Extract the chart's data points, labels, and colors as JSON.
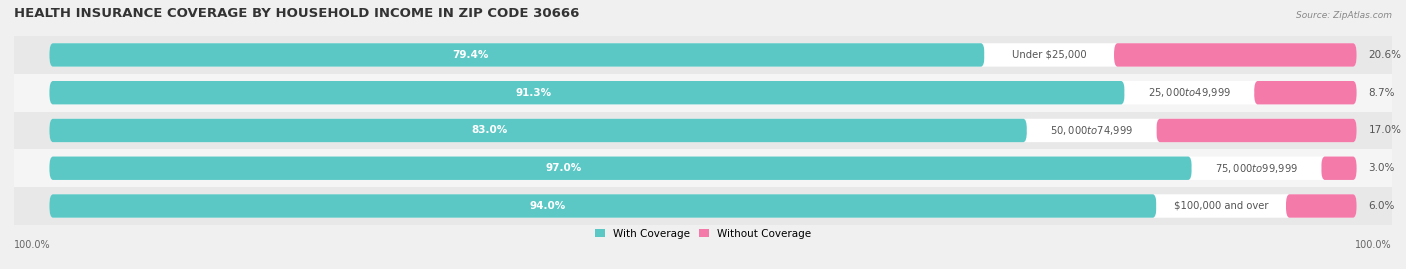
{
  "title": "HEALTH INSURANCE COVERAGE BY HOUSEHOLD INCOME IN ZIP CODE 30666",
  "source": "Source: ZipAtlas.com",
  "categories": [
    "Under $25,000",
    "$25,000 to $49,999",
    "$50,000 to $74,999",
    "$75,000 to $99,999",
    "$100,000 and over"
  ],
  "with_coverage": [
    79.4,
    91.3,
    83.0,
    97.0,
    94.0
  ],
  "without_coverage": [
    20.6,
    8.7,
    17.0,
    3.0,
    6.0
  ],
  "color_with": "#5bc8c5",
  "color_without": "#f47aaa",
  "bg_color": "#f0f0f0",
  "bar_bg_color": "#ffffff",
  "row_bg_even": "#e8e8e8",
  "row_bg_odd": "#f5f5f5",
  "title_fontsize": 9.5,
  "label_fontsize": 7.5,
  "cat_fontsize": 7.2,
  "tick_fontsize": 7,
  "legend_fontsize": 7.5,
  "bar_height": 0.62,
  "bottom_labels": [
    "100.0%",
    "100.0%"
  ]
}
